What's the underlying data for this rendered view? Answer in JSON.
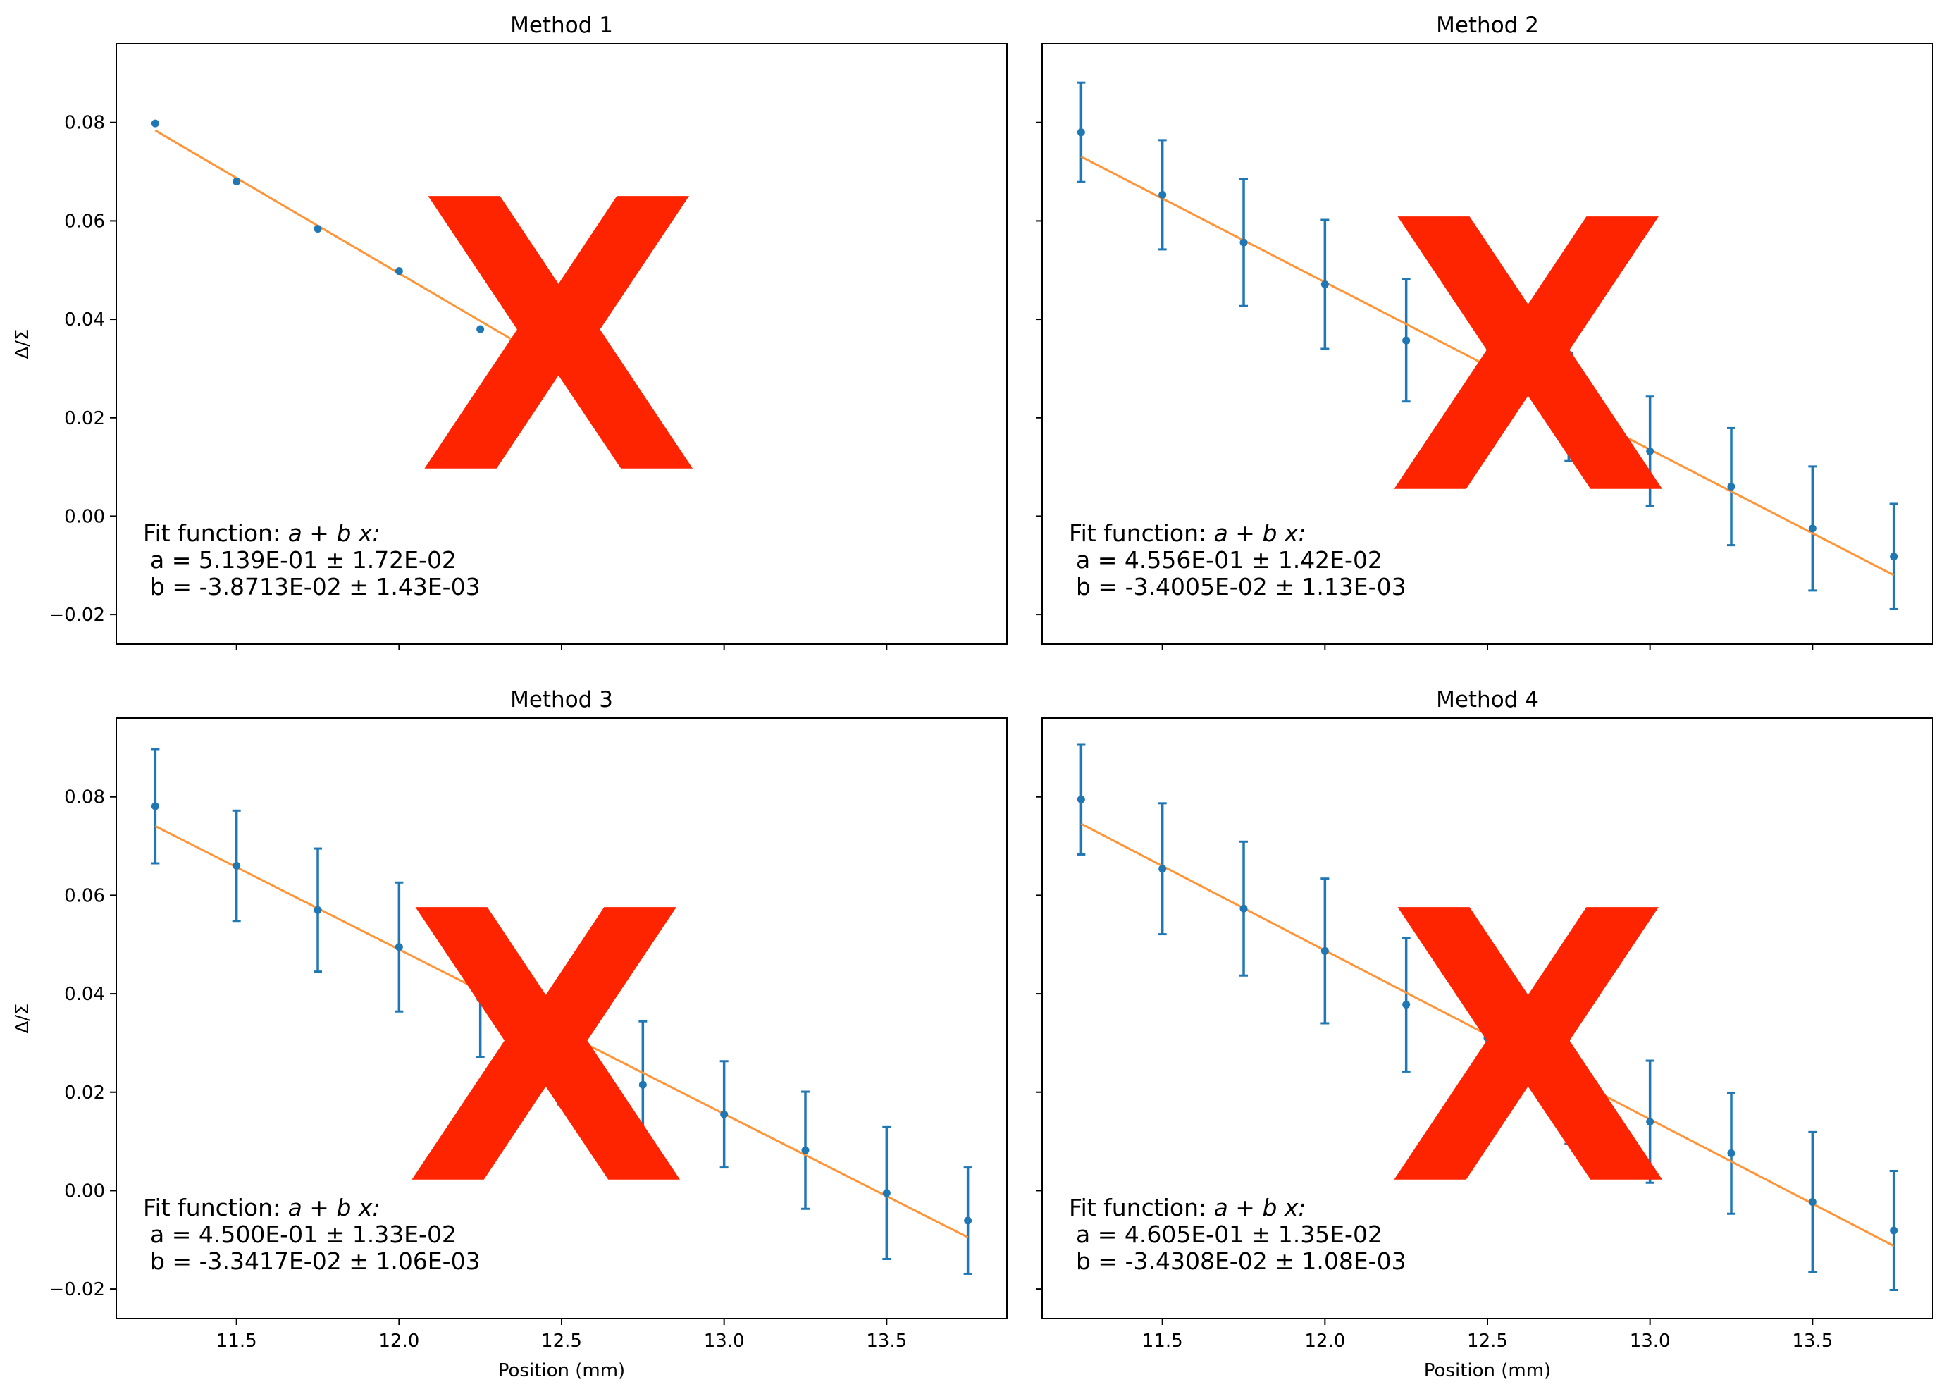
{
  "figure": {
    "colors": {
      "points": "#1f77b4",
      "fit_line": "#ff9438",
      "cross_mark": "#ff2400",
      "axes": "#000000"
    },
    "overlay_mark": "X"
  },
  "chart_data": [
    {
      "type": "scatter",
      "title": "Method 1",
      "xlabel": "",
      "ylabel": "Δ/Σ",
      "xlim": [
        11.13,
        13.87
      ],
      "ylim": [
        -0.026,
        0.096
      ],
      "xticks": [
        11.5,
        12.0,
        12.5,
        13.0,
        13.5
      ],
      "xtick_labels": [
        "",
        "",
        "",
        "",
        ""
      ],
      "yticks": [
        -0.02,
        0.0,
        0.02,
        0.04,
        0.06,
        0.08
      ],
      "ytick_labels": [
        "−0.02",
        "0.00",
        "0.02",
        "0.04",
        "0.06",
        "0.08"
      ],
      "x": [
        11.25,
        11.5,
        11.75,
        12.0,
        12.25,
        12.5,
        12.75
      ],
      "y": [
        0.0798,
        0.068,
        0.0584,
        0.0498,
        0.038,
        0.031,
        0.0231
      ],
      "yerr": null,
      "fit": {
        "a": 0.5139,
        "b": -0.038713,
        "x_range": [
          11.25,
          12.75
        ]
      },
      "annotation": {
        "line1": "Fit function: ",
        "line1_math": "a + b x:",
        "a_text": "a = 5.139E-01 ± 1.72E-02",
        "b_text": "b = -3.8713E-02 ± 1.43E-03"
      }
    },
    {
      "type": "scatter",
      "title": "Method 2",
      "xlabel": "",
      "ylabel": "",
      "xlim": [
        11.13,
        13.87
      ],
      "ylim": [
        -0.026,
        0.096
      ],
      "xticks": [
        11.5,
        12.0,
        12.5,
        13.0,
        13.5
      ],
      "xtick_labels": [
        "",
        "",
        "",
        "",
        ""
      ],
      "yticks": [
        -0.02,
        0.0,
        0.02,
        0.04,
        0.06,
        0.08
      ],
      "ytick_labels": [
        "",
        "",
        "",
        "",
        "",
        ""
      ],
      "x": [
        11.25,
        11.5,
        11.75,
        12.0,
        12.25,
        12.5,
        12.75,
        13.0,
        13.25,
        13.5,
        13.75
      ],
      "y": [
        0.078,
        0.0653,
        0.0556,
        0.0471,
        0.0357,
        0.032,
        0.0222,
        0.0132,
        0.006,
        -0.0025,
        -0.0082
      ],
      "yerr": [
        0.0101,
        0.0111,
        0.0129,
        0.0131,
        0.0124,
        0.011,
        0.011,
        0.0111,
        0.0119,
        0.0126,
        0.0107
      ],
      "fit": {
        "a": 0.4556,
        "b": -0.034005,
        "x_range": [
          11.25,
          13.75
        ]
      },
      "annotation": {
        "line1": "Fit function: ",
        "line1_math": "a + b x:",
        "a_text": "a = 4.556E-01 ± 1.42E-02",
        "b_text": "b = -3.4005E-02 ± 1.13E-03"
      }
    },
    {
      "type": "scatter",
      "title": "Method 3",
      "xlabel": "Position (mm)",
      "ylabel": "Δ/Σ",
      "xlim": [
        11.13,
        13.87
      ],
      "ylim": [
        -0.026,
        0.096
      ],
      "xticks": [
        11.5,
        12.0,
        12.5,
        13.0,
        13.5
      ],
      "xtick_labels": [
        "11.5",
        "12.0",
        "12.5",
        "13.0",
        "13.5"
      ],
      "yticks": [
        -0.02,
        0.0,
        0.02,
        0.04,
        0.06,
        0.08
      ],
      "ytick_labels": [
        "−0.02",
        "0.00",
        "0.02",
        "0.04",
        "0.06",
        "0.08"
      ],
      "x": [
        11.25,
        11.5,
        11.75,
        12.0,
        12.25,
        12.5,
        12.75,
        13.0,
        13.25,
        13.5,
        13.75
      ],
      "y": [
        0.0781,
        0.066,
        0.057,
        0.0495,
        0.039,
        0.03,
        0.0215,
        0.0155,
        0.0082,
        -0.0005,
        -0.0061
      ],
      "yerr": [
        0.0116,
        0.0112,
        0.0125,
        0.0131,
        0.0118,
        0.0125,
        0.0129,
        0.0108,
        0.0119,
        0.0134,
        0.0108
      ],
      "fit": {
        "a": 0.45,
        "b": -0.033417,
        "x_range": [
          11.25,
          13.75
        ]
      },
      "annotation": {
        "line1": "Fit function: ",
        "line1_math": "a + b x:",
        "a_text": "a = 4.500E-01 ± 1.33E-02",
        "b_text": "b = -3.3417E-02 ± 1.06E-03"
      }
    },
    {
      "type": "scatter",
      "title": "Method 4",
      "xlabel": "Position (mm)",
      "ylabel": "",
      "xlim": [
        11.13,
        13.87
      ],
      "ylim": [
        -0.026,
        0.096
      ],
      "xticks": [
        11.5,
        12.0,
        12.5,
        13.0,
        13.5
      ],
      "xtick_labels": [
        "11.5",
        "12.0",
        "12.5",
        "13.0",
        "13.5"
      ],
      "yticks": [
        -0.02,
        0.0,
        0.02,
        0.04,
        0.06,
        0.08
      ],
      "ytick_labels": [
        "",
        "",
        "",
        "",
        "",
        ""
      ],
      "x": [
        11.25,
        11.5,
        11.75,
        12.0,
        12.25,
        12.5,
        12.75,
        13.0,
        13.25,
        13.5,
        13.75
      ],
      "y": [
        0.0795,
        0.0654,
        0.0573,
        0.0487,
        0.0378,
        0.031,
        0.0225,
        0.014,
        0.0076,
        -0.0023,
        -0.0081
      ],
      "yerr": [
        0.0112,
        0.0133,
        0.0136,
        0.0147,
        0.0136,
        0.013,
        0.013,
        0.0124,
        0.0123,
        0.0142,
        0.0121
      ],
      "fit": {
        "a": 0.4605,
        "b": -0.034308,
        "x_range": [
          11.25,
          13.75
        ]
      },
      "annotation": {
        "line1": "Fit function: ",
        "line1_math": "a + b x:",
        "a_text": "a = 4.605E-01 ± 1.35E-02",
        "b_text": "b = -3.4308E-02 ± 1.08E-03"
      }
    }
  ]
}
